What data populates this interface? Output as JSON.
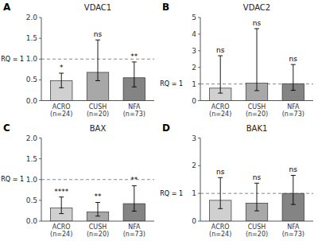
{
  "chart_data": [
    {
      "type": "bar",
      "title": "VDAC1",
      "panel_label": "A",
      "categories": [
        "ACRO\n(n=24)",
        "CUSH\n(n=20)",
        "NFA\n(n=73)"
      ],
      "values": [
        0.48,
        0.68,
        0.55
      ],
      "err_low": [
        0.17,
        0.2,
        0.22
      ],
      "err_high": [
        0.18,
        0.78,
        0.38
      ],
      "significance": [
        "*",
        "ns",
        "**"
      ],
      "colors": [
        "#d0d0d0",
        "#a8a8a8",
        "#848484"
      ],
      "ylim": [
        0,
        2.0
      ],
      "yticks": [
        {
          "value": 0.0,
          "label": "0.0"
        },
        0.5,
        {
          "value": 1.0,
          "label": "1.0"
        },
        1.5,
        {
          "value": 2.0,
          "label": "2.0"
        }
      ],
      "reference_line": {
        "value": 1.0,
        "label": "RQ = 1"
      }
    },
    {
      "type": "bar",
      "title": "VDAC2",
      "panel_label": "B",
      "categories": [
        "ACRO\n(n=24)",
        "CUSH\n(n=20)",
        "NFA\n(n=73)"
      ],
      "values": [
        0.75,
        1.05,
        1.02
      ],
      "err_low": [
        0.3,
        0.45,
        0.4
      ],
      "err_high": [
        1.95,
        3.28,
        1.15
      ],
      "significance": [
        "ns",
        "ns",
        "ns"
      ],
      "colors": [
        "#d0d0d0",
        "#a8a8a8",
        "#848484"
      ],
      "ylim": [
        0,
        5.0
      ],
      "yticks": [
        0,
        1,
        2,
        3,
        4,
        5
      ],
      "reference_line": {
        "value": 1.0,
        "label": "RQ = 1"
      }
    },
    {
      "type": "bar",
      "title": "BAX",
      "panel_label": "C",
      "categories": [
        "ACRO\n(n=24)",
        "CUSH\n(n=20)",
        "NFA\n(n=73)"
      ],
      "values": [
        0.32,
        0.22,
        0.42
      ],
      "err_low": [
        0.14,
        0.1,
        0.18
      ],
      "err_high": [
        0.26,
        0.23,
        0.43
      ],
      "significance": [
        "****",
        "**",
        "**"
      ],
      "colors": [
        "#d0d0d0",
        "#a8a8a8",
        "#848484"
      ],
      "ylim": [
        0,
        2.0
      ],
      "yticks": [
        {
          "value": 0.0,
          "label": "0.0"
        },
        0.5,
        {
          "value": 1.0,
          "label": "1.0"
        },
        1.5,
        {
          "value": 2.0,
          "label": "2.0"
        }
      ],
      "reference_line": {
        "value": 1.0,
        "label": "RQ = 1"
      }
    },
    {
      "type": "bar",
      "title": "BAK1",
      "panel_label": "D",
      "categories": [
        "ACRO\n(n=24)",
        "CUSH\n(n=20)",
        "NFA\n(n=73)"
      ],
      "values": [
        0.75,
        0.65,
        1.0
      ],
      "err_low": [
        0.3,
        0.28,
        0.4
      ],
      "err_high": [
        0.82,
        0.72,
        0.65
      ],
      "significance": [
        "ns",
        "ns",
        "ns"
      ],
      "colors": [
        "#d0d0d0",
        "#a8a8a8",
        "#848484"
      ],
      "ylim": [
        0,
        3.0
      ],
      "yticks": [
        0,
        1,
        2,
        3
      ],
      "reference_line": {
        "value": 1.0,
        "label": "RQ = 1"
      }
    }
  ]
}
